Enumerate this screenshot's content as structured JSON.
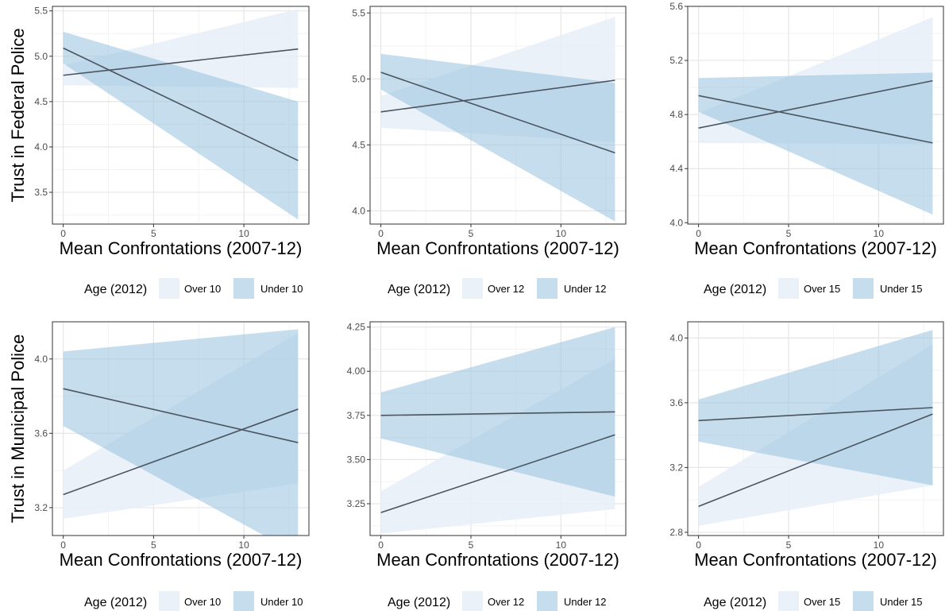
{
  "colors": {
    "over_fill": "#e6eef8",
    "under_fill": "#9ec6e0",
    "line": "#4a5560",
    "grid_major": "#e6e6e6",
    "grid_minor": "#f3f3f3",
    "panel_border": "#333333"
  },
  "chart_data": [
    {
      "type": "line",
      "xlabel": "Mean Confrontations (2007-12)",
      "ylabel": "Trust in Federal Police",
      "xlim": [
        -0.6,
        13.6
      ],
      "ylim": [
        3.15,
        5.55
      ],
      "xticks": [
        0,
        5,
        10
      ],
      "xtick_labels": [
        "0",
        "5",
        "10"
      ],
      "yticks": [
        3.5,
        4.0,
        4.5,
        5.0,
        5.5
      ],
      "ytick_labels": [
        "3.5",
        "4.0",
        "4.5",
        "5.0",
        "5.5"
      ],
      "legend": {
        "title": "Age (2012)",
        "labels": [
          "Over 10",
          "Under 10"
        ],
        "placement": "bottom"
      },
      "series": [
        {
          "name": "Over 10",
          "x": [
            0,
            13
          ],
          "y": [
            4.79,
            5.08
          ],
          "ymin": [
            4.68,
            4.65
          ],
          "ymax": [
            4.9,
            5.52
          ]
        },
        {
          "name": "Under 10",
          "x": [
            0,
            13
          ],
          "y": [
            5.09,
            3.85
          ],
          "ymin": [
            4.92,
            3.2
          ],
          "ymax": [
            5.27,
            4.5
          ]
        }
      ]
    },
    {
      "type": "line",
      "xlabel": "Mean Confrontations (2007-12)",
      "ylabel": "",
      "xlim": [
        -0.6,
        13.6
      ],
      "ylim": [
        3.9,
        5.55
      ],
      "xticks": [
        0,
        5,
        10
      ],
      "xtick_labels": [
        "0",
        "5",
        "10"
      ],
      "yticks": [
        4.0,
        4.5,
        5.0,
        5.5
      ],
      "ytick_labels": [
        "4.0",
        "4.5",
        "5.0",
        "5.5"
      ],
      "legend": {
        "title": "Age (2012)",
        "labels": [
          "Over 12",
          "Under 12"
        ],
        "placement": "bottom"
      },
      "series": [
        {
          "name": "Over 12",
          "x": [
            0,
            13
          ],
          "y": [
            4.75,
            4.99
          ],
          "ymin": [
            4.63,
            4.52
          ],
          "ymax": [
            4.87,
            5.47
          ]
        },
        {
          "name": "Under 12",
          "x": [
            0,
            13
          ],
          "y": [
            5.05,
            4.44
          ],
          "ymin": [
            4.92,
            3.92
          ],
          "ymax": [
            5.19,
            4.97
          ]
        }
      ]
    },
    {
      "type": "line",
      "xlabel": "Mean Confrontations (2007-12)",
      "ylabel": "",
      "xlim": [
        -0.6,
        13.6
      ],
      "ylim": [
        3.99,
        5.6
      ],
      "xticks": [
        0,
        5,
        10
      ],
      "xtick_labels": [
        "0",
        "5",
        "10"
      ],
      "yticks": [
        4.0,
        4.4,
        4.8,
        5.2,
        5.6
      ],
      "ytick_labels": [
        "4.0",
        "4.4",
        "4.8",
        "5.2",
        "5.6"
      ],
      "legend": {
        "title": "Age (2012)",
        "labels": [
          "Over 15",
          "Under 15"
        ],
        "placement": "bottom"
      },
      "series": [
        {
          "name": "Over 15",
          "x": [
            0,
            13
          ],
          "y": [
            4.7,
            5.05
          ],
          "ymin": [
            4.59,
            4.58
          ],
          "ymax": [
            4.81,
            5.52
          ]
        },
        {
          "name": "Under 15",
          "x": [
            0,
            13
          ],
          "y": [
            4.94,
            4.59
          ],
          "ymin": [
            4.82,
            4.06
          ],
          "ymax": [
            5.07,
            5.11
          ]
        }
      ]
    },
    {
      "type": "line",
      "xlabel": "Mean Confrontations (2007-12)",
      "ylabel": "Trust in Municipal Police",
      "xlim": [
        -0.6,
        13.6
      ],
      "ylim": [
        3.05,
        4.2
      ],
      "xticks": [
        0,
        5,
        10
      ],
      "xtick_labels": [
        "0",
        "5",
        "10"
      ],
      "yticks": [
        3.2,
        3.6,
        4.0
      ],
      "ytick_labels": [
        "3.2",
        "3.6",
        "4.0"
      ],
      "legend": {
        "title": "Age (2012)",
        "labels": [
          "Over 10",
          "Under 10"
        ],
        "placement": "bottom"
      },
      "series": [
        {
          "name": "Over 10",
          "x": [
            0,
            13
          ],
          "y": [
            3.27,
            3.73
          ],
          "ymin": [
            3.14,
            3.33
          ],
          "ymax": [
            3.4,
            4.14
          ]
        },
        {
          "name": "Under 10",
          "x": [
            0,
            13
          ],
          "y": [
            3.84,
            3.55
          ],
          "ymin": [
            3.64,
            2.95
          ],
          "ymax": [
            4.04,
            4.16
          ]
        }
      ]
    },
    {
      "type": "line",
      "xlabel": "Mean Confrontations (2007-12)",
      "ylabel": "",
      "xlim": [
        -0.6,
        13.6
      ],
      "ylim": [
        3.07,
        4.28
      ],
      "xticks": [
        0,
        5,
        10
      ],
      "xtick_labels": [
        "0",
        "5",
        "10"
      ],
      "yticks": [
        3.25,
        3.5,
        3.75,
        4.0,
        4.25
      ],
      "ytick_labels": [
        "3.25",
        "3.50",
        "3.75",
        "4.00",
        "4.25"
      ],
      "legend": {
        "title": "Age (2012)",
        "labels": [
          "Over 12",
          "Under 12"
        ],
        "placement": "bottom"
      },
      "series": [
        {
          "name": "Over 12",
          "x": [
            0,
            13
          ],
          "y": [
            3.2,
            3.64
          ],
          "ymin": [
            3.08,
            3.22
          ],
          "ymax": [
            3.32,
            4.07
          ]
        },
        {
          "name": "Under 12",
          "x": [
            0,
            13
          ],
          "y": [
            3.75,
            3.77
          ],
          "ymin": [
            3.62,
            3.29
          ],
          "ymax": [
            3.88,
            4.25
          ]
        }
      ]
    },
    {
      "type": "line",
      "xlabel": "Mean Confrontations (2007-12)",
      "ylabel": "",
      "xlim": [
        -0.6,
        13.6
      ],
      "ylim": [
        2.78,
        4.1
      ],
      "xticks": [
        0,
        5,
        10
      ],
      "xtick_labels": [
        "0",
        "5",
        "10"
      ],
      "yticks": [
        2.8,
        3.2,
        3.6,
        4.0
      ],
      "ytick_labels": [
        "2.8",
        "3.2",
        "3.6",
        "4.0"
      ],
      "legend": {
        "title": "Age (2012)",
        "labels": [
          "Over 15",
          "Under 15"
        ],
        "placement": "bottom"
      },
      "series": [
        {
          "name": "Over 15",
          "x": [
            0,
            13
          ],
          "y": [
            2.96,
            3.53
          ],
          "ymin": [
            2.84,
            3.09
          ],
          "ymax": [
            3.08,
            3.96
          ]
        },
        {
          "name": "Under 15",
          "x": [
            0,
            13
          ],
          "y": [
            3.49,
            3.57
          ],
          "ymin": [
            3.36,
            3.09
          ],
          "ymax": [
            3.62,
            4.05
          ]
        }
      ]
    }
  ]
}
